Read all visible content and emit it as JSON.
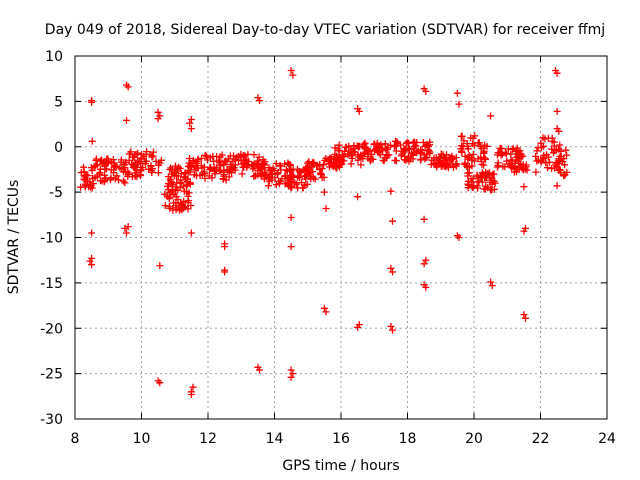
{
  "chart_data": {
    "type": "scatter",
    "title": "Day 049 of 2018, Sidereal Day-to-day VTEC variation (SDTVAR) for receiver ffmj",
    "xlabel": "GPS time / hours",
    "ylabel": "SDTVAR / TECUs",
    "xlim": [
      8,
      24
    ],
    "ylim": [
      -30,
      10
    ],
    "xticks": [
      8,
      10,
      12,
      14,
      16,
      18,
      20,
      22,
      24
    ],
    "yticks": [
      -30,
      -25,
      -20,
      -15,
      -10,
      -5,
      0,
      5,
      10
    ],
    "grid": true,
    "marker": "+",
    "color": "#ff0000",
    "series": [
      {
        "name": "SDTVAR",
        "clusters": [
          [
            8.15,
            8.55,
            -4.8,
            -2.2
          ],
          [
            8.55,
            9.6,
            -4.3,
            -1.3
          ],
          [
            9.6,
            10.6,
            -3.3,
            -0.5
          ],
          [
            10.7,
            11.5,
            -7.0,
            -4.3
          ],
          [
            10.8,
            11.5,
            -4.2,
            -2.0
          ],
          [
            11.4,
            11.7,
            -3.3,
            -1.2
          ],
          [
            11.7,
            12.7,
            -3.8,
            -0.9
          ],
          [
            12.7,
            13.7,
            -3.3,
            -0.8
          ],
          [
            13.6,
            14.5,
            -4.3,
            -1.6
          ],
          [
            14.4,
            15.0,
            -4.6,
            -2.4
          ],
          [
            14.9,
            15.5,
            -3.6,
            -1.6
          ],
          [
            15.5,
            16.0,
            -2.4,
            -1.2
          ],
          [
            15.8,
            16.6,
            -2.0,
            0.2
          ],
          [
            16.6,
            17.5,
            -1.6,
            0.4
          ],
          [
            17.6,
            18.7,
            -1.6,
            0.6
          ],
          [
            18.7,
            19.5,
            -2.3,
            -0.8
          ],
          [
            19.6,
            20.4,
            -2.3,
            1.2
          ],
          [
            19.8,
            20.7,
            -4.8,
            -2.8
          ],
          [
            20.7,
            21.4,
            -2.4,
            0.0
          ],
          [
            21.2,
            21.6,
            -2.8,
            -0.8
          ],
          [
            21.8,
            22.6,
            -2.8,
            1.0
          ],
          [
            22.6,
            22.8,
            -3.6,
            -0.3
          ]
        ],
        "points": [
          [
            8.5,
            5.1
          ],
          [
            8.5,
            4.9
          ],
          [
            8.52,
            0.6
          ],
          [
            8.5,
            -9.5
          ],
          [
            8.45,
            -12.6
          ],
          [
            8.5,
            -13.0
          ],
          [
            8.5,
            -12.3
          ],
          [
            9.55,
            6.8
          ],
          [
            9.6,
            6.6
          ],
          [
            9.55,
            2.9
          ],
          [
            9.5,
            -9.0
          ],
          [
            9.55,
            -9.5
          ],
          [
            9.6,
            -8.8
          ],
          [
            10.5,
            3.8
          ],
          [
            10.55,
            3.4
          ],
          [
            10.5,
            3.1
          ],
          [
            10.55,
            -13.1
          ],
          [
            10.5,
            -25.8
          ],
          [
            10.55,
            -26.0
          ],
          [
            11.5,
            3.0
          ],
          [
            11.45,
            2.6
          ],
          [
            11.5,
            2.0
          ],
          [
            11.5,
            -9.5
          ],
          [
            11.55,
            -26.5
          ],
          [
            11.5,
            -27.0
          ],
          [
            11.5,
            -27.3
          ],
          [
            12.5,
            -10.7
          ],
          [
            12.5,
            -11.0
          ],
          [
            12.5,
            -13.6
          ],
          [
            12.5,
            -13.8
          ],
          [
            13.5,
            5.4
          ],
          [
            13.55,
            5.1
          ],
          [
            13.5,
            -24.3
          ],
          [
            13.55,
            -24.6
          ],
          [
            14.5,
            8.4
          ],
          [
            14.55,
            7.9
          ],
          [
            14.5,
            -7.8
          ],
          [
            14.5,
            -11.0
          ],
          [
            14.5,
            -24.6
          ],
          [
            14.55,
            -25.0
          ],
          [
            14.5,
            -25.4
          ],
          [
            15.5,
            -5.0
          ],
          [
            15.55,
            -6.8
          ],
          [
            15.5,
            -17.8
          ],
          [
            15.55,
            -18.2
          ],
          [
            16.5,
            4.2
          ],
          [
            16.55,
            3.9
          ],
          [
            16.5,
            -5.5
          ],
          [
            16.55,
            -19.6
          ],
          [
            16.5,
            -19.9
          ],
          [
            17.5,
            -4.9
          ],
          [
            17.55,
            -8.2
          ],
          [
            17.5,
            -13.4
          ],
          [
            17.55,
            -13.8
          ],
          [
            17.5,
            -19.8
          ],
          [
            17.55,
            -20.2
          ],
          [
            18.5,
            6.4
          ],
          [
            18.55,
            6.1
          ],
          [
            18.5,
            -8.0
          ],
          [
            18.55,
            -12.5
          ],
          [
            18.5,
            -12.9
          ],
          [
            18.5,
            -15.2
          ],
          [
            18.55,
            -15.5
          ],
          [
            19.5,
            5.9
          ],
          [
            19.55,
            4.7
          ],
          [
            19.5,
            -9.8
          ],
          [
            19.55,
            -10.0
          ],
          [
            20.5,
            3.4
          ],
          [
            20.5,
            -14.9
          ],
          [
            20.55,
            -15.3
          ],
          [
            21.5,
            -4.4
          ],
          [
            21.55,
            -9.0
          ],
          [
            21.5,
            -9.3
          ],
          [
            21.5,
            -18.5
          ],
          [
            21.55,
            -18.9
          ],
          [
            22.45,
            8.4
          ],
          [
            22.5,
            8.1
          ],
          [
            22.5,
            3.9
          ],
          [
            22.5,
            2.0
          ],
          [
            22.55,
            1.7
          ],
          [
            22.5,
            -4.3
          ]
        ]
      }
    ]
  }
}
